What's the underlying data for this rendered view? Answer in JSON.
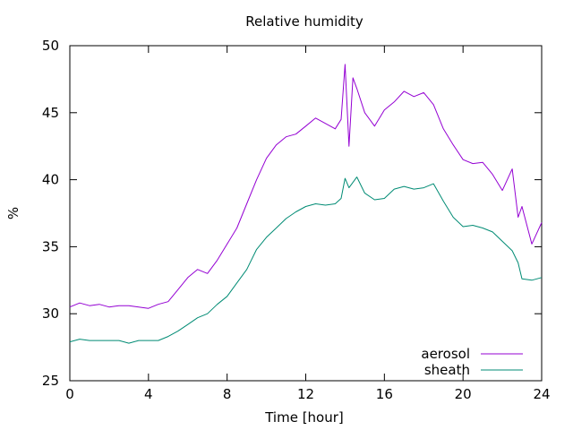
{
  "chart_data": {
    "type": "line",
    "title": "Relative humidity",
    "xlabel": "Time [hour]",
    "ylabel": "%",
    "xlim": [
      0,
      24
    ],
    "ylim": [
      25,
      50
    ],
    "xticks": [
      0,
      4,
      8,
      12,
      16,
      20,
      24
    ],
    "yticks": [
      25,
      30,
      35,
      40,
      45,
      50
    ],
    "grid": false,
    "legend_position": "bottom-right",
    "x": [
      0,
      0.5,
      1,
      1.5,
      2,
      2.5,
      3,
      3.5,
      4,
      4.5,
      5,
      5.5,
      6,
      6.5,
      7,
      7.5,
      8,
      8.5,
      9,
      9.5,
      10,
      10.5,
      11,
      11.5,
      12,
      12.5,
      13,
      13.5,
      13.8,
      14,
      14.2,
      14.4,
      14.6,
      15,
      15.5,
      16,
      16.5,
      17,
      17.5,
      18,
      18.5,
      19,
      19.5,
      20,
      20.5,
      21,
      21.5,
      22,
      22.5,
      22.8,
      23,
      23.5,
      24
    ],
    "series": [
      {
        "name": "aerosol",
        "color": "#9400d3",
        "values": [
          30.5,
          30.8,
          30.6,
          30.7,
          30.5,
          30.6,
          30.6,
          30.5,
          30.4,
          30.7,
          30.9,
          31.8,
          32.7,
          33.3,
          33.0,
          34.0,
          35.2,
          36.4,
          38.2,
          40.0,
          41.6,
          42.6,
          43.2,
          43.4,
          44.0,
          44.6,
          44.2,
          43.8,
          44.5,
          48.6,
          42.5,
          47.6,
          46.8,
          45.0,
          44.0,
          45.2,
          45.8,
          46.6,
          46.2,
          46.5,
          45.6,
          43.8,
          42.6,
          41.5,
          41.2,
          41.3,
          40.4,
          39.2,
          40.8,
          37.2,
          38.0,
          35.2,
          36.8
        ]
      },
      {
        "name": "sheath",
        "color": "#008b74",
        "values": [
          27.9,
          28.1,
          28.0,
          28.0,
          28.0,
          28.0,
          27.8,
          28.0,
          28.0,
          28.0,
          28.3,
          28.7,
          29.2,
          29.7,
          30.0,
          30.7,
          31.3,
          32.3,
          33.3,
          34.8,
          35.7,
          36.4,
          37.1,
          37.6,
          38.0,
          38.2,
          38.1,
          38.2,
          38.6,
          40.1,
          39.4,
          39.8,
          40.2,
          39.0,
          38.5,
          38.6,
          39.3,
          39.5,
          39.3,
          39.4,
          39.7,
          38.4,
          37.2,
          36.5,
          36.6,
          36.4,
          36.1,
          35.4,
          34.7,
          33.8,
          32.6,
          32.5,
          32.7
        ]
      }
    ]
  }
}
